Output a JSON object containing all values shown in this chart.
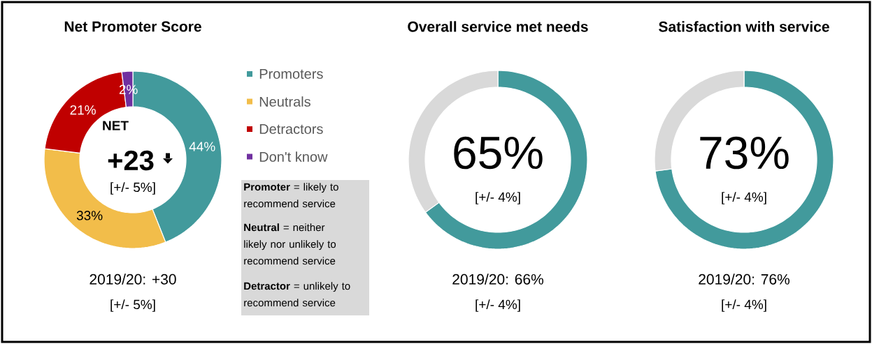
{
  "chart_data": [
    {
      "type": "donut",
      "title": "Net Promoter Score",
      "categories": [
        "Promoters",
        "Neutrals",
        "Detractors",
        "Don't know"
      ],
      "values": [
        44,
        33,
        21,
        2
      ],
      "colors": [
        "#429a9c",
        "#f2bd4a",
        "#c00000",
        "#7030a0"
      ],
      "value_labels": [
        "44%",
        "33%",
        "21%",
        "2%"
      ],
      "legend": "right",
      "annotations": [
        "NET",
        "+23",
        "[+/- 5%]",
        "2019/20: +30",
        "[+/- 5%]"
      ]
    },
    {
      "type": "other",
      "annotations": [
        "**Promoter** = likely to recommend service",
        "**Neutral** = neither likely nor unlikely to recommend service",
        "**Detractor** = unlikely to recommend service"
      ]
    },
    {
      "type": "donut",
      "title": "Overall service met needs",
      "categories": [
        null,
        null
      ],
      "values": [
        65,
        35
      ],
      "colors": [
        "#429a9c",
        "#d9d9d9"
      ],
      "value_labels": [
        "65%",
        null
      ],
      "annotations": [
        "[+/- 4%]",
        "2019/20: 66%",
        "[+/- 4%]"
      ]
    },
    {
      "type": "donut",
      "title": "Satisfaction with service",
      "categories": [
        null,
        null
      ],
      "values": [
        73,
        27
      ],
      "colors": [
        "#429a9c",
        "#d9d9d9"
      ],
      "value_labels": [
        "73%",
        null
      ],
      "annotations": [
        "[+/- 4%]",
        "2019/20: 76%",
        "[+/- 4%]"
      ]
    }
  ]
}
